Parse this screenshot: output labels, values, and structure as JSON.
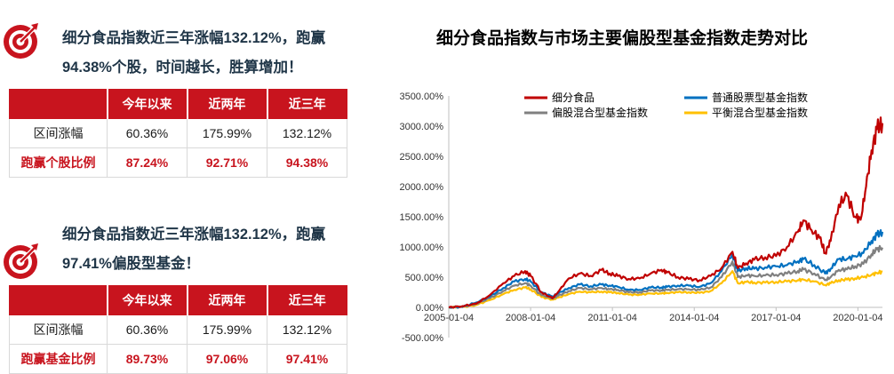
{
  "panel1": {
    "heading_line1": "细分食品指数近三年涨幅132.12%，跑赢",
    "heading_line2": "94.38%个股，时间越长，胜算增加！",
    "columns": [
      "今年以来",
      "近两年",
      "近三年"
    ],
    "rows": [
      {
        "label": "区间涨幅",
        "values": [
          "60.36%",
          "175.99%",
          "132.12%"
        ]
      },
      {
        "label": "跑赢个股比例",
        "values": [
          "87.24%",
          "92.71%",
          "94.38%"
        ]
      }
    ]
  },
  "panel2": {
    "heading_line1": "细分食品指数近三年涨幅132.12%，跑赢",
    "heading_line2": "97.41%偏股型基金！",
    "columns": [
      "今年以来",
      "近两年",
      "近三年"
    ],
    "rows": [
      {
        "label": "区间涨幅",
        "values": [
          "60.36%",
          "175.99%",
          "132.12%"
        ]
      },
      {
        "label": "跑赢基金比例",
        "values": [
          "89.73%",
          "97.06%",
          "97.41%"
        ]
      }
    ]
  },
  "colors": {
    "accent": "#c8141e",
    "heading": "#1f3547"
  },
  "chart_data": {
    "type": "line",
    "title": "细分食品指数与市场主要偏股型基金指数走势对比",
    "xlabel": "",
    "ylabel": "",
    "x_ticks": [
      "2005-01-04",
      "2008-01-04",
      "2011-01-04",
      "2014-01-04",
      "2017-01-04",
      "2020-01-04"
    ],
    "y_ticks": [
      "3500.00%",
      "3000.00%",
      "2500.00%",
      "2000.00%",
      "1500.00%",
      "1000.00%",
      "500.00%",
      "0.00%",
      "-500.00%"
    ],
    "ylim": [
      -500,
      3500
    ],
    "xlim": [
      2005.0,
      2020.9
    ],
    "legend_position": "top",
    "grid": false,
    "series": [
      {
        "name": "细分食品",
        "color": "#c00000",
        "points": [
          [
            2005.0,
            0
          ],
          [
            2005.5,
            20
          ],
          [
            2006.0,
            60
          ],
          [
            2006.5,
            200
          ],
          [
            2007.0,
            400
          ],
          [
            2007.4,
            520
          ],
          [
            2007.8,
            600
          ],
          [
            2008.0,
            520
          ],
          [
            2008.4,
            250
          ],
          [
            2008.8,
            150
          ],
          [
            2009.0,
            250
          ],
          [
            2009.4,
            480
          ],
          [
            2009.8,
            560
          ],
          [
            2010.2,
            520
          ],
          [
            2010.6,
            620
          ],
          [
            2010.9,
            560
          ],
          [
            2011.2,
            520
          ],
          [
            2011.6,
            470
          ],
          [
            2012.0,
            480
          ],
          [
            2012.4,
            560
          ],
          [
            2012.8,
            620
          ],
          [
            2013.0,
            580
          ],
          [
            2013.4,
            500
          ],
          [
            2013.8,
            470
          ],
          [
            2014.2,
            450
          ],
          [
            2014.6,
            520
          ],
          [
            2015.0,
            650
          ],
          [
            2015.4,
            920
          ],
          [
            2015.6,
            650
          ],
          [
            2015.9,
            730
          ],
          [
            2016.2,
            790
          ],
          [
            2016.6,
            830
          ],
          [
            2017.0,
            850
          ],
          [
            2017.4,
            1000
          ],
          [
            2017.8,
            1250
          ],
          [
            2018.0,
            1440
          ],
          [
            2018.3,
            1280
          ],
          [
            2018.6,
            1150
          ],
          [
            2018.8,
            900
          ],
          [
            2019.0,
            1100
          ],
          [
            2019.3,
            1700
          ],
          [
            2019.6,
            1850
          ],
          [
            2019.9,
            1500
          ],
          [
            2020.1,
            1450
          ],
          [
            2020.3,
            2000
          ],
          [
            2020.5,
            2600
          ],
          [
            2020.7,
            2950
          ],
          [
            2020.9,
            3050
          ]
        ]
      },
      {
        "name": "普通股票型基金指数",
        "color": "#0070c0",
        "points": [
          [
            2005.0,
            0
          ],
          [
            2005.5,
            10
          ],
          [
            2006.0,
            80
          ],
          [
            2006.5,
            180
          ],
          [
            2007.0,
            320
          ],
          [
            2007.4,
            430
          ],
          [
            2007.8,
            470
          ],
          [
            2008.0,
            430
          ],
          [
            2008.4,
            250
          ],
          [
            2008.8,
            180
          ],
          [
            2009.0,
            230
          ],
          [
            2009.4,
            320
          ],
          [
            2009.8,
            380
          ],
          [
            2010.2,
            350
          ],
          [
            2010.6,
            380
          ],
          [
            2010.9,
            360
          ],
          [
            2011.2,
            340
          ],
          [
            2011.6,
            290
          ],
          [
            2012.0,
            290
          ],
          [
            2012.4,
            330
          ],
          [
            2012.8,
            330
          ],
          [
            2013.0,
            340
          ],
          [
            2013.4,
            360
          ],
          [
            2013.8,
            360
          ],
          [
            2014.2,
            340
          ],
          [
            2014.6,
            400
          ],
          [
            2015.0,
            600
          ],
          [
            2015.4,
            880
          ],
          [
            2015.6,
            600
          ],
          [
            2015.9,
            650
          ],
          [
            2016.2,
            640
          ],
          [
            2016.6,
            660
          ],
          [
            2017.0,
            680
          ],
          [
            2017.4,
            700
          ],
          [
            2017.8,
            760
          ],
          [
            2018.0,
            800
          ],
          [
            2018.4,
            700
          ],
          [
            2018.8,
            560
          ],
          [
            2019.0,
            640
          ],
          [
            2019.3,
            800
          ],
          [
            2019.6,
            800
          ],
          [
            2019.9,
            850
          ],
          [
            2020.2,
            900
          ],
          [
            2020.5,
            1100
          ],
          [
            2020.7,
            1200
          ],
          [
            2020.9,
            1250
          ]
        ]
      },
      {
        "name": "偏股混合型基金指数",
        "color": "#808080",
        "points": [
          [
            2005.0,
            0
          ],
          [
            2005.5,
            5
          ],
          [
            2006.0,
            60
          ],
          [
            2006.5,
            150
          ],
          [
            2007.0,
            270
          ],
          [
            2007.4,
            360
          ],
          [
            2007.8,
            400
          ],
          [
            2008.0,
            360
          ],
          [
            2008.4,
            200
          ],
          [
            2008.8,
            150
          ],
          [
            2009.0,
            190
          ],
          [
            2009.4,
            270
          ],
          [
            2009.8,
            320
          ],
          [
            2010.2,
            300
          ],
          [
            2010.6,
            320
          ],
          [
            2010.9,
            300
          ],
          [
            2011.2,
            290
          ],
          [
            2011.6,
            250
          ],
          [
            2012.0,
            250
          ],
          [
            2012.4,
            280
          ],
          [
            2012.8,
            280
          ],
          [
            2013.0,
            290
          ],
          [
            2013.4,
            300
          ],
          [
            2013.8,
            300
          ],
          [
            2014.2,
            290
          ],
          [
            2014.6,
            330
          ],
          [
            2015.0,
            500
          ],
          [
            2015.4,
            760
          ],
          [
            2015.6,
            500
          ],
          [
            2015.9,
            530
          ],
          [
            2016.2,
            520
          ],
          [
            2016.6,
            530
          ],
          [
            2017.0,
            540
          ],
          [
            2017.4,
            560
          ],
          [
            2017.8,
            600
          ],
          [
            2018.0,
            630
          ],
          [
            2018.4,
            560
          ],
          [
            2018.8,
            450
          ],
          [
            2019.0,
            500
          ],
          [
            2019.3,
            620
          ],
          [
            2019.6,
            630
          ],
          [
            2019.9,
            680
          ],
          [
            2020.2,
            720
          ],
          [
            2020.5,
            880
          ],
          [
            2020.7,
            960
          ],
          [
            2020.9,
            990
          ]
        ]
      },
      {
        "name": "平衡混合型基金指数",
        "color": "#ffc000",
        "points": [
          [
            2005.0,
            0
          ],
          [
            2005.5,
            5
          ],
          [
            2006.0,
            40
          ],
          [
            2006.5,
            120
          ],
          [
            2007.0,
            220
          ],
          [
            2007.4,
            290
          ],
          [
            2007.8,
            330
          ],
          [
            2008.0,
            300
          ],
          [
            2008.4,
            170
          ],
          [
            2008.8,
            130
          ],
          [
            2009.0,
            160
          ],
          [
            2009.4,
            220
          ],
          [
            2009.8,
            260
          ],
          [
            2010.2,
            250
          ],
          [
            2010.6,
            260
          ],
          [
            2010.9,
            250
          ],
          [
            2011.2,
            240
          ],
          [
            2011.6,
            210
          ],
          [
            2012.0,
            210
          ],
          [
            2012.4,
            230
          ],
          [
            2012.8,
            230
          ],
          [
            2013.0,
            240
          ],
          [
            2013.4,
            250
          ],
          [
            2013.8,
            250
          ],
          [
            2014.2,
            240
          ],
          [
            2014.6,
            270
          ],
          [
            2015.0,
            400
          ],
          [
            2015.4,
            600
          ],
          [
            2015.6,
            400
          ],
          [
            2015.9,
            420
          ],
          [
            2016.2,
            410
          ],
          [
            2016.6,
            410
          ],
          [
            2017.0,
            420
          ],
          [
            2017.4,
            430
          ],
          [
            2017.8,
            450
          ],
          [
            2018.0,
            460
          ],
          [
            2018.4,
            430
          ],
          [
            2018.8,
            370
          ],
          [
            2019.0,
            400
          ],
          [
            2019.3,
            450
          ],
          [
            2019.6,
            460
          ],
          [
            2019.9,
            480
          ],
          [
            2020.2,
            500
          ],
          [
            2020.5,
            540
          ],
          [
            2020.7,
            570
          ],
          [
            2020.9,
            590
          ]
        ]
      }
    ]
  }
}
